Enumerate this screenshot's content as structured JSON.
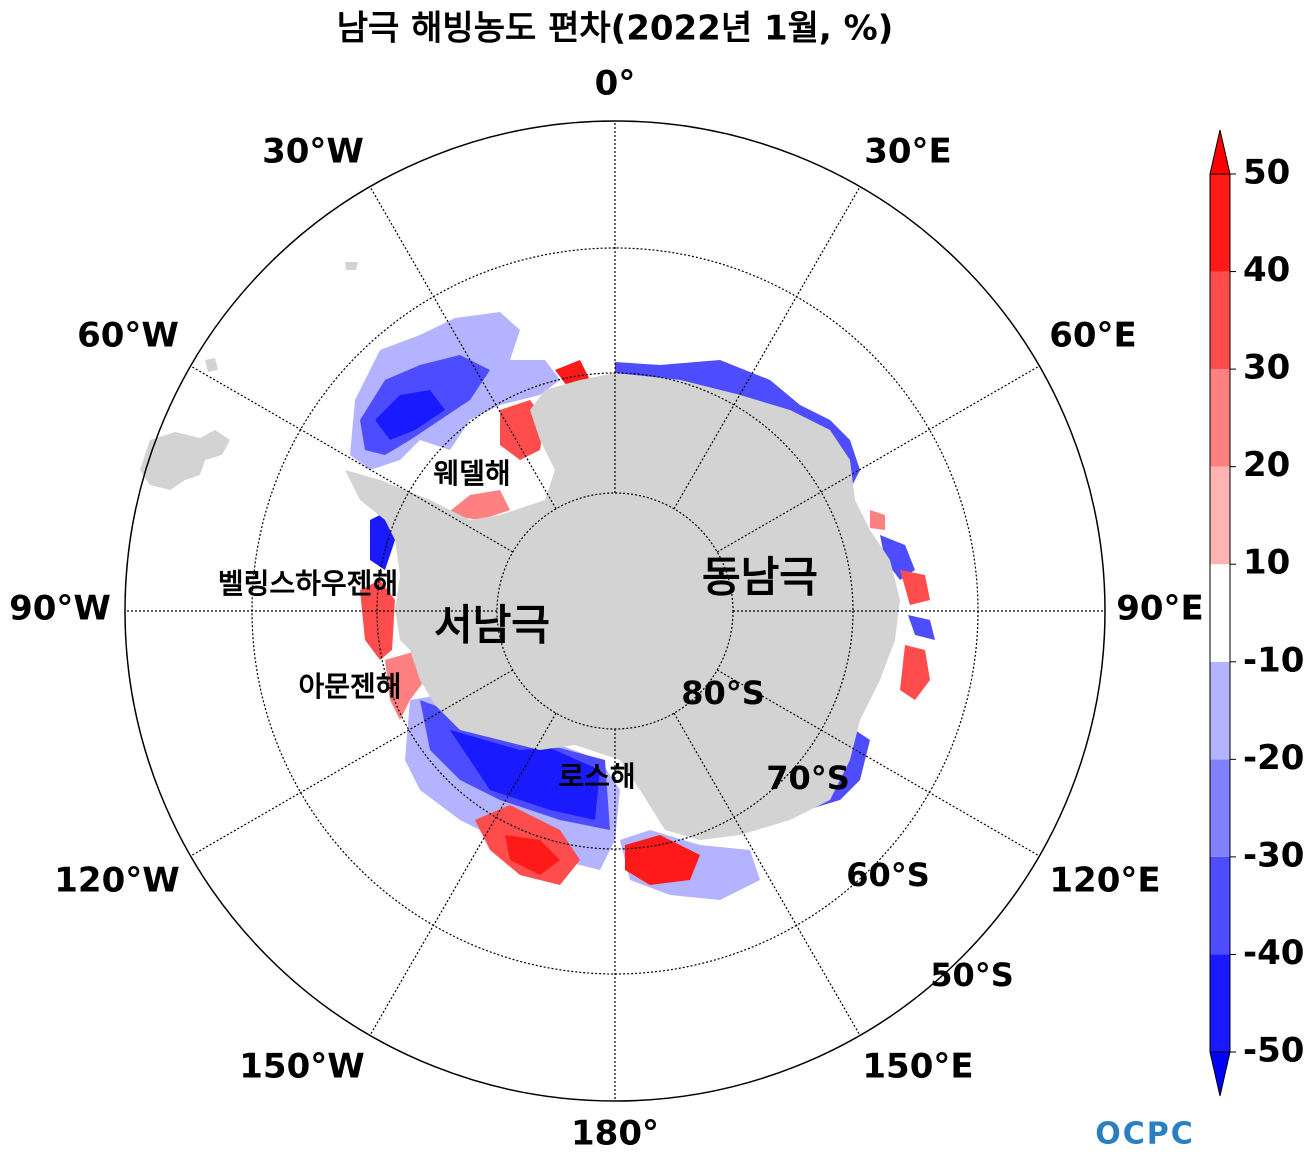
{
  "map": {
    "title": "남극 해빙농도 편차(2022년 1월, %)",
    "longitude_labels": [
      "0°",
      "30°E",
      "60°E",
      "90°E",
      "120°E",
      "150°E",
      "180°",
      "150°W",
      "120°W",
      "90°W",
      "60°W",
      "30°W"
    ],
    "latitude_labels": [
      "80°S",
      "70°S",
      "60°S",
      "50°S"
    ],
    "regions": [
      "웨델해",
      "벨링스하우젠해",
      "아문젠해",
      "로스해",
      "서남극",
      "동남극"
    ],
    "colorbar": {
      "ticks": [
        -50,
        -40,
        -30,
        -20,
        -10,
        10,
        20,
        30,
        40,
        50
      ],
      "colors": [
        "#1a1aff",
        "#4d4dff",
        "#8080ff",
        "#b3b3ff",
        "#ffffff",
        "#ffb3b3",
        "#ff8080",
        "#ff4d4d",
        "#ff1a1a"
      ],
      "under_color": "#0000ff",
      "over_color": "#ff0000"
    },
    "logo": "OCPC"
  }
}
